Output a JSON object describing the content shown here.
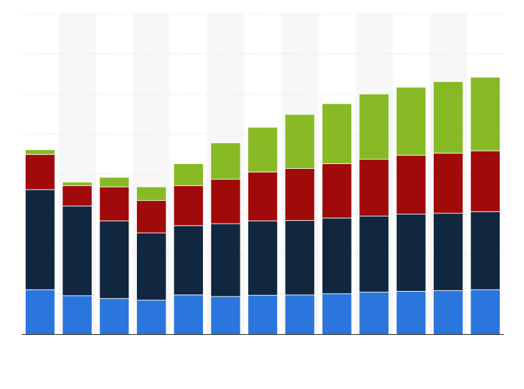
{
  "chart_data": {
    "type": "bar",
    "stacked": true,
    "title": "",
    "xlabel": "",
    "ylabel": "",
    "categories": [
      "",
      "",
      "",
      "",
      "",
      "",
      "",
      "",
      "",
      "",
      "",
      "",
      ""
    ],
    "series": [
      {
        "color": "#2a76dc",
        "values": [
          11.0,
          9.5,
          8.8,
          8.4,
          9.7,
          9.3,
          9.6,
          9.7,
          10.0,
          10.4,
          10.6,
          10.8,
          11.0
        ]
      },
      {
        "color": "#11263f",
        "values": [
          25.0,
          22.4,
          19.4,
          16.8,
          17.3,
          18.2,
          18.6,
          18.6,
          18.9,
          19.0,
          19.3,
          19.3,
          19.5
        ]
      },
      {
        "color": "#a10a0a",
        "values": [
          8.8,
          5.1,
          8.5,
          8.1,
          10.0,
          11.1,
          12.2,
          13.0,
          13.6,
          14.2,
          14.7,
          15.0,
          15.2
        ]
      },
      {
        "color": "#87ba25",
        "values": [
          1.2,
          0.9,
          2.4,
          3.4,
          5.5,
          9.1,
          11.2,
          13.5,
          15.0,
          16.3,
          17.0,
          17.9,
          18.4
        ]
      }
    ],
    "ylim": [
      0,
      80
    ],
    "yticks": [
      0,
      10,
      20,
      30,
      40,
      50,
      60,
      70,
      80
    ],
    "grid": true,
    "legend": "none"
  }
}
